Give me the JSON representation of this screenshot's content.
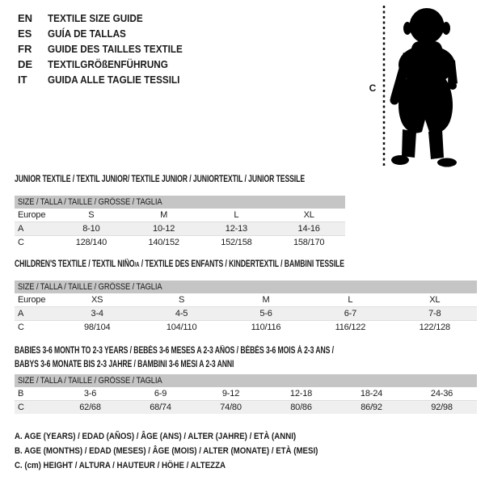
{
  "colors": {
    "background": "#ffffff",
    "text": "#1b1b1b",
    "header_bar": "#c5c5c5",
    "row_alt": "#efefef",
    "silhouette": "#000000"
  },
  "languages": [
    {
      "code": "EN",
      "label": "TEXTILE SIZE GUIDE"
    },
    {
      "code": "ES",
      "label": "GUÍA DE TALLAS"
    },
    {
      "code": "FR",
      "label": "GUIDE DES TAILLES TEXTILE"
    },
    {
      "code": "DE",
      "label": "TEXTILGRÖßENFÜHRUNG"
    },
    {
      "code": "IT",
      "label": "GUIDA ALLE TAGLIE TESSILI"
    }
  ],
  "figure": {
    "icon": "baby-silhouette",
    "height_label": "C"
  },
  "tables": [
    {
      "title_lines": [
        "JUNIOR TEXTILE / TEXTIL JUNIOR/ TEXTILE JUNIOR / JUNIORTEXTIL / JUNIOR TESSILE"
      ],
      "header": "SIZE / TALLA / TAILLE / GRÖSSE / TAGLIA",
      "rows": [
        {
          "label": "Europe",
          "values": [
            "S",
            "M",
            "L",
            "XL"
          ]
        },
        {
          "label": "A",
          "values": [
            "8-10",
            "10-12",
            "12-13",
            "14-16"
          ]
        },
        {
          "label": "C",
          "values": [
            "128/140",
            "140/152",
            "152/158",
            "158/170"
          ]
        }
      ]
    },
    {
      "title_parts": {
        "pre": "CHILDREN'S TEXTILE / TEXTIL NIÑO",
        "sub": "/A",
        "post": " / TEXTILE DES ENFANTS / KINDERTEXTIL / BAMBINI TESSILE"
      },
      "header": "SIZE / TALLA / TAILLE / GRÖSSE / TAGLIA",
      "rows": [
        {
          "label": "Europe",
          "values": [
            "XS",
            "S",
            "M",
            "L",
            "XL"
          ]
        },
        {
          "label": "A",
          "values": [
            "3-4",
            "4-5",
            "5-6",
            "6-7",
            "7-8"
          ]
        },
        {
          "label": "C",
          "values": [
            "98/104",
            "104/110",
            "110/116",
            "116/122",
            "122/128"
          ]
        }
      ]
    },
    {
      "title_lines": [
        "BABIES 3-6 MONTH TO 2-3 YEARS / BEBÉS 3-6 MESES A 2-3 AÑOS / BÉBÉS 3-6 MOIS À 2-3 ANS /",
        "BABYS 3-6 MONATE BIS 2-3 JAHRE / BAMBINI 3-6 MESI A 2-3 ANNI"
      ],
      "header": "SIZE / TALLA / TAILLE / GRÖSSE / TAGLIA",
      "rows": [
        {
          "label": "B",
          "values": [
            "3-6",
            "6-9",
            "9-12",
            "12-18",
            "18-24",
            "24-36"
          ]
        },
        {
          "label": "C",
          "values": [
            "62/68",
            "68/74",
            "74/80",
            "80/86",
            "86/92",
            "92/98"
          ]
        }
      ]
    }
  ],
  "legend": [
    "A. AGE (YEARS) / EDAD (AÑOS) / ÂGE (ANS) / ALTER (JAHRE) / ETÀ (ANNI)",
    "B. AGE (MONTHS) / EDAD (MESES) / ÂGE (MOIS) / ALTER (MONATE) / ETÀ (MESI)",
    "C. (cm) HEIGHT / ALTURA / HAUTEUR / HÖHE / ALTEZZA"
  ]
}
